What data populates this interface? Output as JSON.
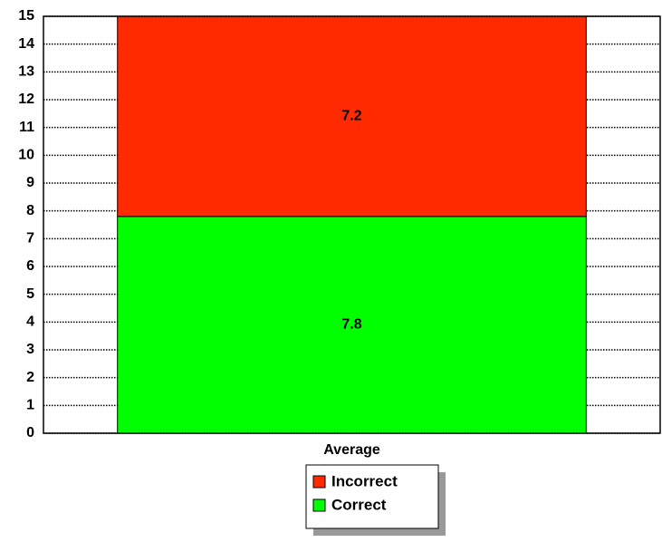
{
  "chart_data": {
    "type": "stacked_bar",
    "categories": [
      "Average"
    ],
    "series": [
      {
        "name": "Correct",
        "color": "#00ff00",
        "values": [
          7.8
        ]
      },
      {
        "name": "Incorrect",
        "color": "#ff2a00",
        "values": [
          7.2
        ]
      }
    ],
    "ylim": [
      0,
      15
    ],
    "yticks": [
      0,
      1,
      2,
      3,
      4,
      5,
      6,
      7,
      8,
      9,
      10,
      11,
      12,
      13,
      14,
      15
    ],
    "grid": true,
    "legend": "bottom"
  }
}
